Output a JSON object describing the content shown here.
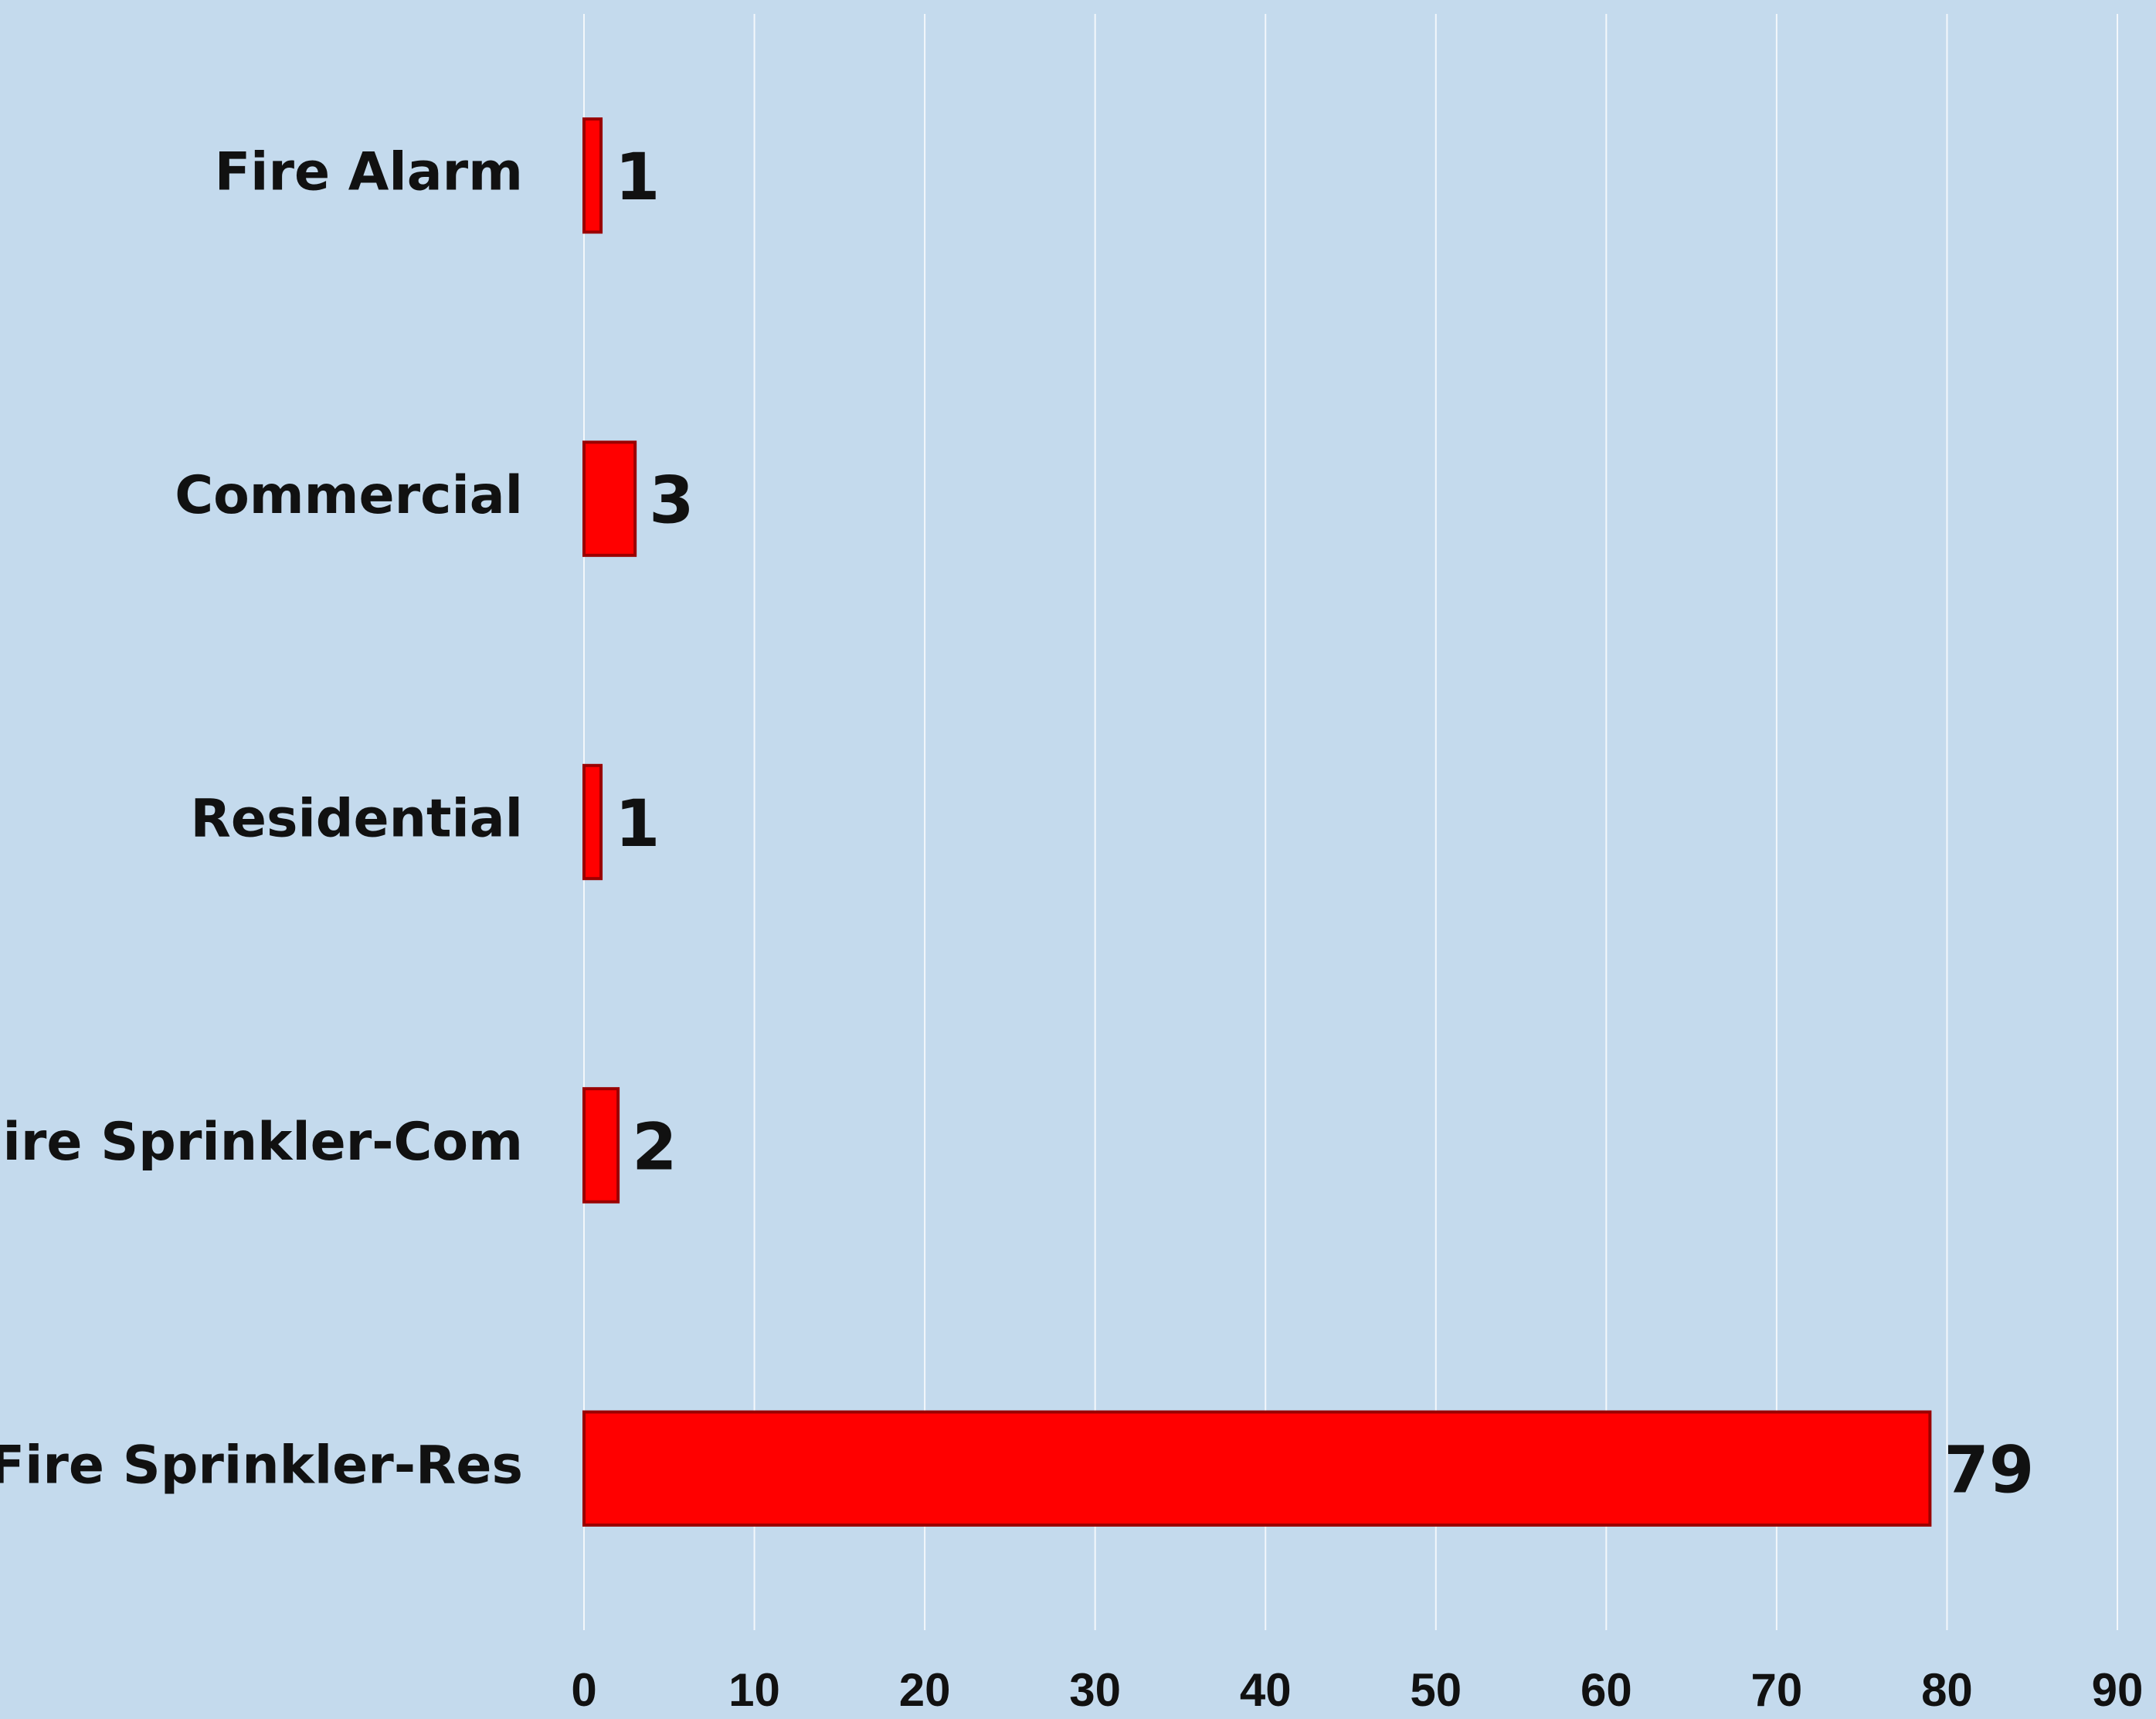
{
  "chart_data": {
    "type": "bar",
    "orientation": "horizontal",
    "categories": [
      "Fire Alarm",
      "Commercial",
      "Residential",
      "Fire Sprinkler-Com",
      "Fire Sprinkler-Res"
    ],
    "values": [
      1,
      3,
      1,
      2,
      79
    ],
    "color": "#ff0000",
    "xlim": [
      0,
      90
    ],
    "xticks": [
      0,
      10,
      20,
      30,
      40,
      50,
      60,
      70,
      80,
      90
    ],
    "grid": true
  }
}
